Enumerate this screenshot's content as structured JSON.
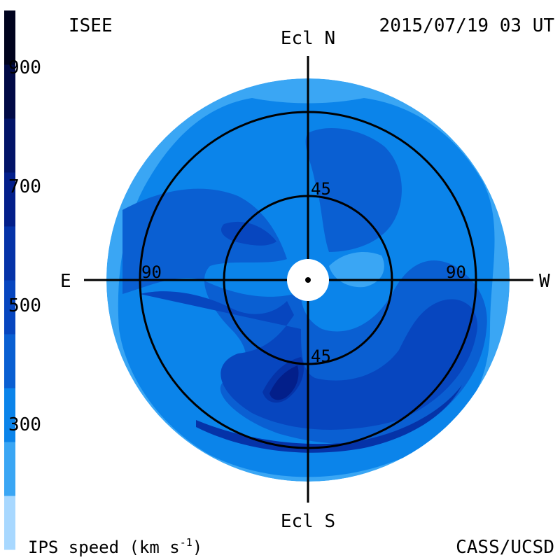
{
  "header": {
    "source": "ISEE",
    "timestamp": "2015/07/19 03 UT"
  },
  "footer": {
    "quantity_prefix": "IPS speed (km s",
    "quantity_exponent": "-1",
    "quantity_suffix": ")",
    "credit": "CASS/UCSD"
  },
  "directions": {
    "north": "Ecl N",
    "south": "Ecl S",
    "east": "E",
    "west": "W"
  },
  "rings": {
    "inner_label": "45",
    "outer_label": "90"
  },
  "colorbar": {
    "ticks": [
      "900",
      "700",
      "500",
      "300"
    ],
    "bands": [
      "#a8d8ff",
      "#3aa6f4",
      "#0b84ea",
      "#0a5fd2",
      "#0746bf",
      "#0533a8",
      "#031f8a",
      "#021468",
      "#010a46",
      "#00031e"
    ]
  },
  "map_colors": {
    "outer": "#3aa6f4",
    "level_2": "#0b84ea",
    "level_3": "#0a5fd2",
    "level_4": "#0746bf",
    "level_5": "#0533a8",
    "level_6": "#031f8a",
    "level_fast_pocket": "#3aa6f4"
  }
}
